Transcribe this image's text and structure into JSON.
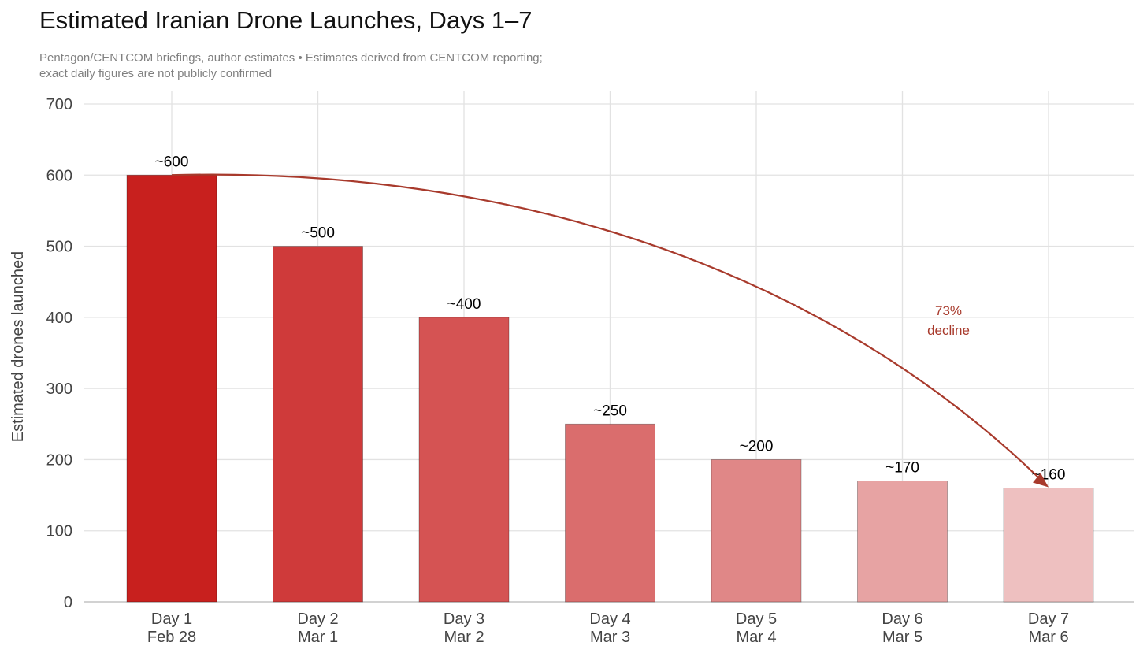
{
  "chart_data": {
    "type": "bar",
    "title": "Estimated Iranian Drone Launches, Days 1–7",
    "subtitle_line1": "Pentagon/CENTCOM briefings, author estimates  •  Estimates derived from CENTCOM reporting;",
    "subtitle_line2": "exact daily figures are not publicly confirmed",
    "ylabel": "Estimated drones launched",
    "xlabel": "",
    "ylim": [
      0,
      700
    ],
    "yticks": [
      0,
      100,
      200,
      300,
      400,
      500,
      600,
      700
    ],
    "grid": true,
    "categories": [
      {
        "day": "Day 1",
        "date": "Feb 28"
      },
      {
        "day": "Day 2",
        "date": "Mar 1"
      },
      {
        "day": "Day 3",
        "date": "Mar 2"
      },
      {
        "day": "Day 4",
        "date": "Mar 3"
      },
      {
        "day": "Day 5",
        "date": "Mar 4"
      },
      {
        "day": "Day 6",
        "date": "Mar 5"
      },
      {
        "day": "Day 7",
        "date": "Mar 6"
      }
    ],
    "values": [
      600,
      500,
      400,
      250,
      200,
      170,
      160
    ],
    "labels": [
      "~600",
      "~500",
      "~400",
      "~250",
      "~200",
      "~170",
      "~160"
    ],
    "colors": [
      "#c8201e",
      "#cf3a3a",
      "#d55353",
      "#da6d6d",
      "#e08787",
      "#e7a3a3",
      "#eec0c0"
    ],
    "annotation": {
      "line1": "73%",
      "line2": "decline",
      "color": "#a83a2c"
    }
  }
}
